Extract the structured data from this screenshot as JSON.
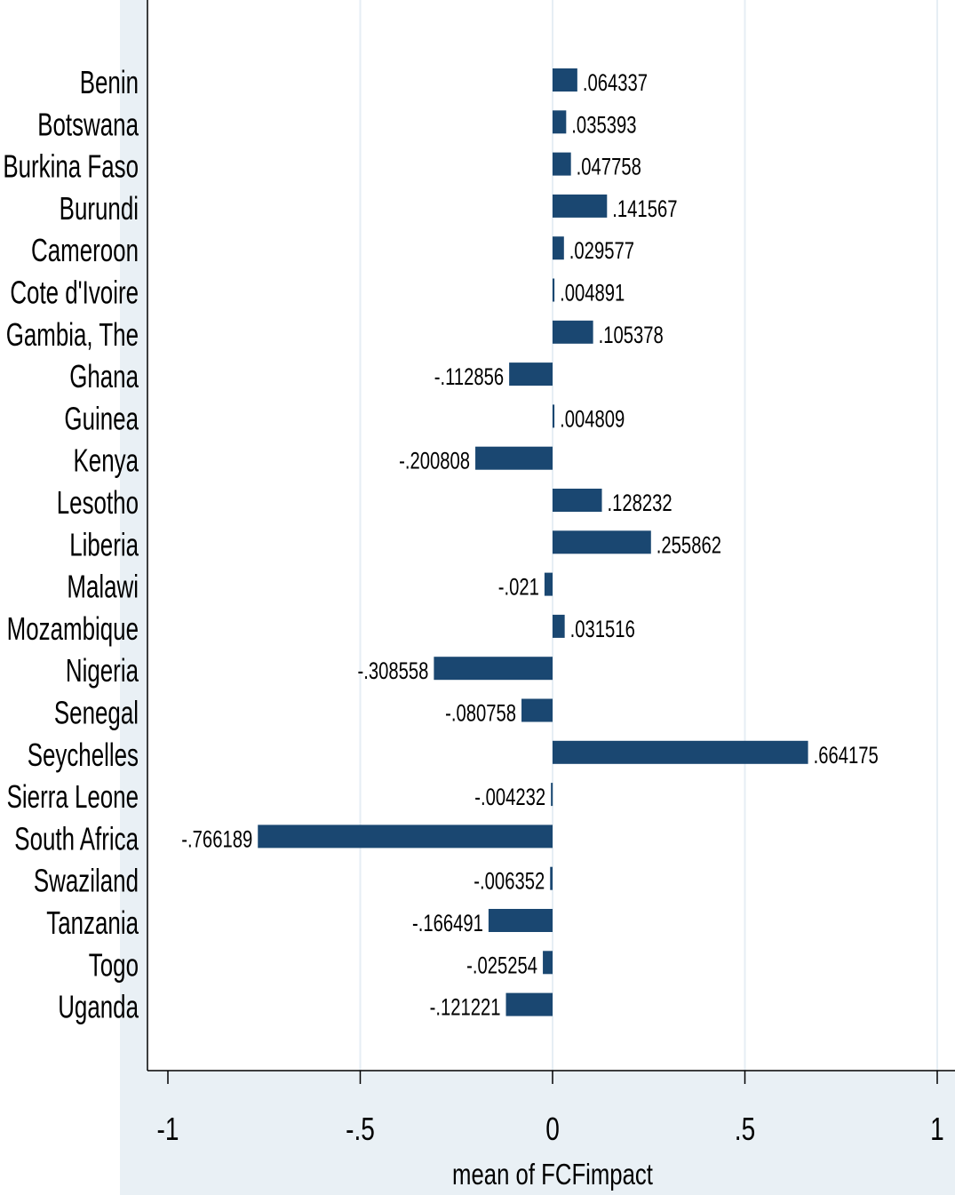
{
  "chart_data": {
    "type": "bar",
    "orientation": "horizontal",
    "title": "",
    "xlabel": "mean of FCFimpact",
    "ylabel": "",
    "xlim": [
      -1,
      1
    ],
    "xticks": [
      -1,
      -0.5,
      0,
      0.5,
      1
    ],
    "xtick_labels": [
      "-1",
      "-.5",
      "0",
      ".5",
      "1"
    ],
    "grid": "vertical",
    "legend": "none",
    "categories": [
      "Benin",
      "Botswana",
      "Burkina Faso",
      "Burundi",
      "Cameroon",
      "Cote d'Ivoire",
      "Gambia, The",
      "Ghana",
      "Guinea",
      "Kenya",
      "Lesotho",
      "Liberia",
      "Malawi",
      "Mozambique",
      "Nigeria",
      "Senegal",
      "Seychelles",
      "Sierra Leone",
      "South Africa",
      "Swaziland",
      "Tanzania",
      "Togo",
      "Uganda"
    ],
    "values": [
      0.064337,
      0.035393,
      0.047758,
      0.141567,
      0.029577,
      0.004891,
      0.105378,
      -0.112856,
      0.004809,
      -0.200808,
      0.128232,
      0.255862,
      -0.021,
      0.031516,
      -0.308558,
      -0.080758,
      0.664175,
      -0.004232,
      -0.766189,
      -0.006352,
      -0.166491,
      -0.025254,
      -0.121221
    ],
    "value_labels": [
      ".064337",
      ".035393",
      ".047758",
      ".141567",
      ".029577",
      ".004891",
      ".105378",
      "-.112856",
      ".004809",
      "-.200808",
      ".128232",
      ".255862",
      "-.021",
      ".031516",
      "-.308558",
      "-.080758",
      ".664175",
      "-.004232",
      "-.766189",
      "-.006352",
      "-.166491",
      "-.025254",
      "-.121221"
    ],
    "colors": {
      "bar": "#1a4771",
      "background": "#e9f0f5",
      "plot_background": "#ffffff",
      "grid": "#e6eef4"
    }
  }
}
